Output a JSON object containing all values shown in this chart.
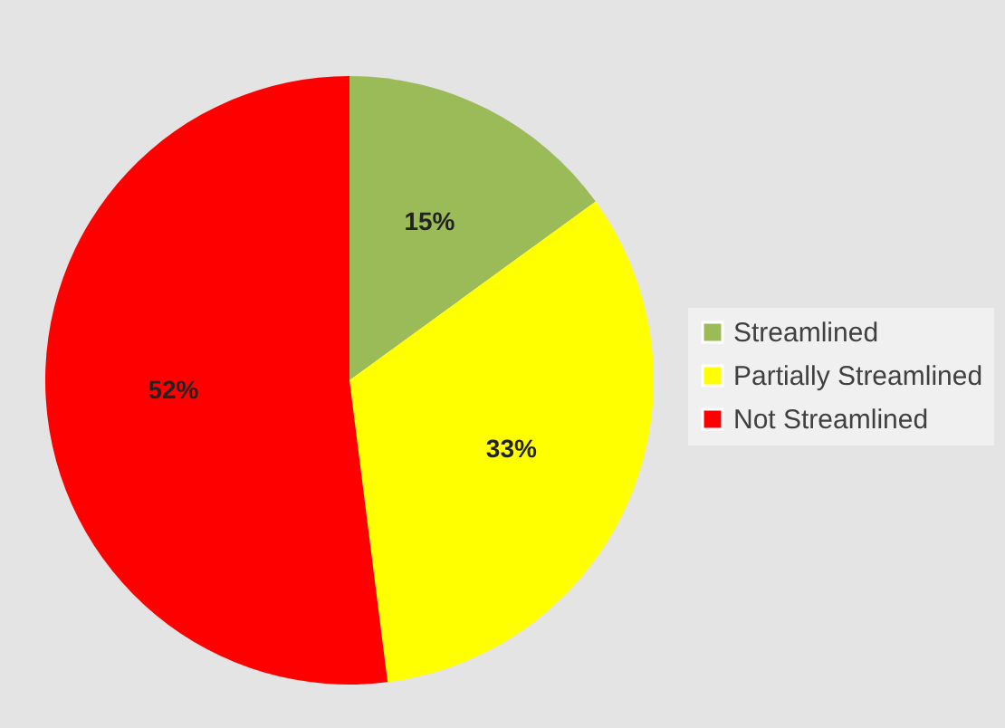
{
  "chart_data": {
    "type": "pie",
    "categories": [
      "Streamlined",
      "Partially Streamlined",
      "Not Streamlined"
    ],
    "values": [
      15,
      33,
      52
    ],
    "colors": [
      "#9bbb59",
      "#ffff00",
      "#ff0000"
    ],
    "value_labels": [
      "15%",
      "33%",
      "52%"
    ],
    "legend": "right"
  }
}
